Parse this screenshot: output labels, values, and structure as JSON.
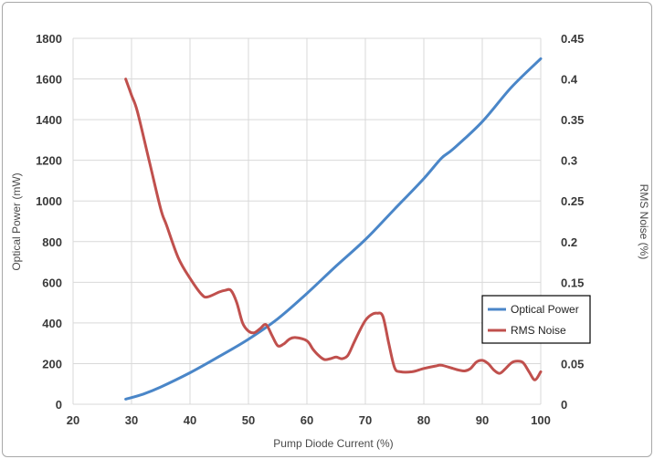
{
  "chart_data": {
    "type": "line",
    "xlabel": "Pump Diode Current (%)",
    "ylabel": "Optical Power (mW)",
    "y2label": "RMS Noise (%)",
    "xlim": [
      20,
      100
    ],
    "ylim": [
      0,
      1800
    ],
    "y2lim": [
      0,
      0.45
    ],
    "xticks": [
      20,
      30,
      40,
      50,
      60,
      70,
      80,
      90,
      100
    ],
    "yticks": [
      0,
      200,
      400,
      600,
      800,
      1000,
      1200,
      1400,
      1600,
      1800
    ],
    "y2ticks": [
      "0",
      "0.05",
      "0.1",
      "0.15",
      "0.2",
      "0.25",
      "0.3",
      "0.35",
      "0.4",
      "0.45"
    ],
    "grid": true,
    "legend_position": "right",
    "series": [
      {
        "name": "Optical Power",
        "axis": "left",
        "color": "#4a86c8",
        "x": [
          29,
          32,
          35,
          40,
          45,
          50,
          55,
          60,
          65,
          70,
          75,
          80,
          83,
          85,
          90,
          95,
          100
        ],
        "y": [
          25,
          50,
          85,
          155,
          235,
          320,
          420,
          545,
          680,
          810,
          960,
          1110,
          1210,
          1255,
          1390,
          1560,
          1700
        ]
      },
      {
        "name": "RMS Noise",
        "axis": "right",
        "color": "#c0504d",
        "x": [
          29,
          30,
          31,
          33,
          35,
          36,
          38,
          40,
          42,
          43,
          45,
          46,
          47,
          48,
          49,
          50,
          51,
          52,
          53,
          54,
          55,
          56,
          57,
          58,
          60,
          61,
          62,
          63,
          64,
          65,
          66,
          67,
          68,
          69,
          70,
          71,
          72,
          73,
          74,
          75,
          76,
          78,
          80,
          82,
          83,
          85,
          86,
          87,
          88,
          89,
          90,
          91,
          92,
          93,
          94,
          95,
          96,
          97,
          98,
          99,
          100
        ],
        "y": [
          0.4,
          0.38,
          0.36,
          0.3,
          0.24,
          0.22,
          0.18,
          0.155,
          0.135,
          0.132,
          0.138,
          0.14,
          0.14,
          0.125,
          0.1,
          0.09,
          0.088,
          0.093,
          0.098,
          0.085,
          0.072,
          0.074,
          0.08,
          0.082,
          0.078,
          0.068,
          0.06,
          0.055,
          0.056,
          0.058,
          0.056,
          0.06,
          0.075,
          0.09,
          0.103,
          0.11,
          0.112,
          0.108,
          0.075,
          0.045,
          0.04,
          0.04,
          0.044,
          0.047,
          0.048,
          0.044,
          0.042,
          0.041,
          0.044,
          0.052,
          0.054,
          0.05,
          0.042,
          0.038,
          0.044,
          0.051,
          0.053,
          0.051,
          0.04,
          0.03,
          0.04
        ]
      }
    ]
  }
}
